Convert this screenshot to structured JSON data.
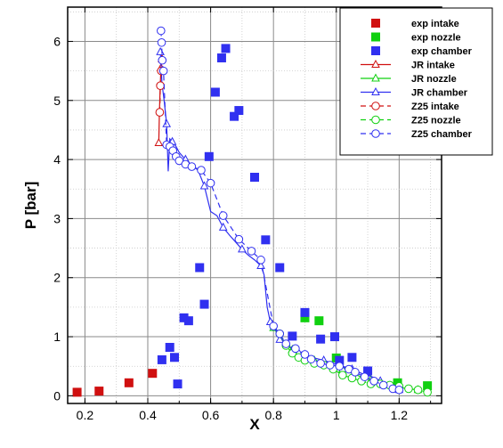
{
  "chart_data": {
    "type": "scatter",
    "xlabel": "X",
    "ylabel": "P [bar]",
    "xlim": [
      0.145,
      1.335
    ],
    "ylim": [
      -0.13,
      6.58
    ],
    "x_ticks": [
      0.2,
      0.4,
      0.6,
      0.8,
      1,
      1.2
    ],
    "x_tick_labels": [
      "0.2",
      "0.4",
      "0.6",
      "0.8",
      "1",
      "1.2"
    ],
    "y_ticks": [
      0,
      1,
      2,
      3,
      4,
      5,
      6
    ],
    "y_tick_labels": [
      "0",
      "1",
      "2",
      "3",
      "4",
      "5",
      "6"
    ],
    "grid": true,
    "legend_position": "top-right",
    "colors": {
      "intake": "#d01010",
      "nozzle": "#10d010",
      "chamber": "#3030f0"
    },
    "series": [
      {
        "name": "exp intake",
        "kind": "square",
        "group": "intake",
        "x": [
          0.175,
          0.245,
          0.34,
          0.415
        ],
        "y": [
          0.06,
          0.08,
          0.22,
          0.38
        ]
      },
      {
        "name": "exp nozzle",
        "kind": "square",
        "group": "nozzle",
        "x": [
          0.9,
          0.945,
          1.0,
          1.195,
          1.29
        ],
        "y": [
          1.32,
          1.27,
          0.64,
          0.22,
          0.17
        ]
      },
      {
        "name": "exp chamber",
        "kind": "square",
        "group": "chamber",
        "x": [
          0.495,
          0.445,
          0.47,
          0.485,
          0.515,
          0.53,
          0.565,
          0.58,
          0.595,
          0.615,
          0.635,
          0.648,
          0.675,
          0.69,
          0.74,
          0.775,
          0.82,
          0.86,
          0.9,
          0.95,
          0.995,
          1.01,
          1.05,
          1.1
        ],
        "y": [
          0.2,
          0.61,
          0.82,
          0.65,
          1.32,
          1.27,
          2.17,
          1.55,
          4.05,
          5.14,
          5.72,
          5.88,
          4.73,
          4.83,
          3.7,
          2.64,
          2.17,
          1.01,
          1.41,
          0.96,
          1.0,
          0.6,
          0.65,
          0.42
        ]
      },
      {
        "name": "JR intake",
        "kind": "line-triangle",
        "group": "intake",
        "dash": false,
        "x": [
          0.435,
          0.437,
          0.44,
          0.442,
          0.445
        ],
        "y": [
          4.28,
          4.8,
          5.3,
          5.55,
          5.7
        ]
      },
      {
        "name": "JR nozzle",
        "kind": "line-triangle",
        "group": "nozzle",
        "dash": false,
        "x": [
          0.8,
          0.82,
          0.84,
          0.86,
          0.88,
          0.9,
          0.93,
          0.96,
          0.99,
          1.02,
          1.05,
          1.08,
          1.11,
          1.14,
          1.17,
          1.2,
          1.23,
          1.26
        ],
        "y": [
          1.15,
          1.0,
          0.88,
          0.78,
          0.7,
          0.65,
          0.6,
          0.55,
          0.5,
          0.45,
          0.38,
          0.32,
          0.27,
          0.22,
          0.18,
          0.14,
          0.12,
          0.1
        ]
      },
      {
        "name": "JR chamber",
        "kind": "line-triangle",
        "group": "chamber",
        "dash": false,
        "x": [
          0.44,
          0.445,
          0.452,
          0.46,
          0.465,
          0.47,
          0.478,
          0.49,
          0.5,
          0.52,
          0.54,
          0.56,
          0.58,
          0.6,
          0.62,
          0.64,
          0.66,
          0.68,
          0.7,
          0.72,
          0.74,
          0.76,
          0.77,
          0.78,
          0.79,
          0.8,
          0.81,
          0.82,
          0.84,
          0.86,
          0.88,
          0.9,
          0.93,
          0.96,
          0.99,
          1.02,
          1.05,
          1.08,
          1.11,
          1.14,
          1.17,
          1.2
        ],
        "y": [
          5.82,
          5.3,
          5.0,
          4.6,
          3.8,
          4.35,
          4.3,
          4.22,
          4.12,
          4.0,
          3.9,
          3.82,
          3.55,
          3.12,
          3.05,
          2.85,
          2.72,
          2.6,
          2.48,
          2.38,
          2.3,
          2.2,
          2.05,
          1.5,
          1.25,
          1.18,
          1.08,
          0.95,
          0.88,
          0.8,
          0.73,
          0.68,
          0.64,
          0.6,
          0.55,
          0.5,
          0.45,
          0.38,
          0.33,
          0.25,
          0.17,
          0.1
        ]
      },
      {
        "name": "Z25 intake",
        "kind": "dash-circle",
        "group": "intake",
        "dash": true,
        "x": [
          0.438,
          0.44,
          0.443
        ],
        "y": [
          4.8,
          5.25,
          5.5
        ]
      },
      {
        "name": "Z25 nozzle",
        "kind": "dash-circle",
        "group": "nozzle",
        "dash": true,
        "x": [
          0.82,
          0.84,
          0.86,
          0.88,
          0.9,
          0.93,
          0.96,
          0.99,
          1.02,
          1.05,
          1.08,
          1.11,
          1.14,
          1.17,
          1.2,
          1.23,
          1.26,
          1.29
        ],
        "y": [
          1.05,
          0.85,
          0.72,
          0.65,
          0.6,
          0.55,
          0.52,
          0.45,
          0.35,
          0.3,
          0.25,
          0.2,
          0.2,
          0.18,
          0.16,
          0.12,
          0.1,
          0.06
        ]
      },
      {
        "name": "Z25 chamber",
        "kind": "dash-circle",
        "group": "chamber",
        "dash": true,
        "x": [
          0.442,
          0.444,
          0.446,
          0.45,
          0.46,
          0.47,
          0.48,
          0.49,
          0.5,
          0.52,
          0.54,
          0.57,
          0.6,
          0.64,
          0.69,
          0.73,
          0.76,
          0.8,
          0.82,
          0.84,
          0.87,
          0.9,
          0.92,
          0.95,
          0.98,
          1.01,
          1.04,
          1.06,
          1.09,
          1.12,
          1.15,
          1.18,
          1.2
        ],
        "y": [
          6.18,
          5.98,
          5.68,
          5.5,
          4.25,
          4.22,
          4.15,
          4.05,
          3.98,
          3.92,
          3.88,
          3.82,
          3.6,
          3.05,
          2.65,
          2.45,
          2.3,
          1.18,
          1.05,
          0.88,
          0.8,
          0.7,
          0.62,
          0.55,
          0.52,
          0.5,
          0.45,
          0.4,
          0.32,
          0.25,
          0.18,
          0.12,
          0.1
        ]
      }
    ]
  }
}
